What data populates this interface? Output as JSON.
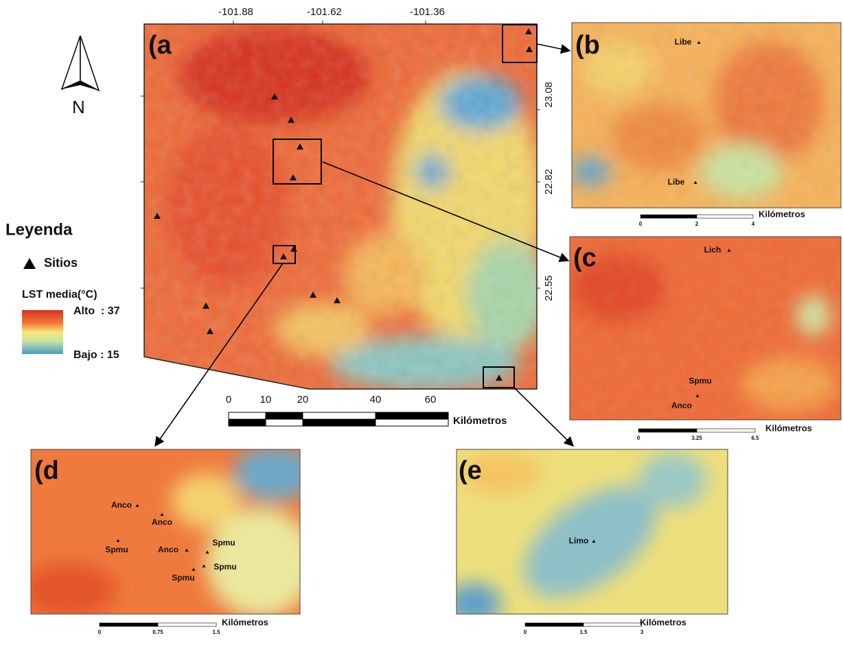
{
  "north": "N",
  "legend": {
    "title": "Leyenda",
    "sites": "Sitios",
    "lst_title": "LST media(°C)",
    "high": "Alto  : 37",
    "low": "Bajo : 15"
  },
  "panel_a": {
    "label": "(a",
    "lon_labels": [
      "-101.88",
      "-101.62",
      "-101.36"
    ],
    "lat_labels": [
      "23.08",
      "22.82",
      "22.55"
    ],
    "scale_labels": [
      "0",
      "10",
      "20",
      "40",
      "60"
    ],
    "scale_unit": "Kilómetros"
  },
  "insets": [
    {
      "label": "(b",
      "sites": [
        "Libe",
        "Libe"
      ],
      "scale_labels": [
        "0",
        "2",
        "4"
      ],
      "scale_unit": "Kilómetros"
    },
    {
      "label": "(c",
      "sites": [
        "Lich",
        "Spmu",
        "Anco"
      ],
      "scale_labels": [
        "0",
        "3.25",
        "6.5"
      ],
      "scale_unit": "Kilómetros"
    },
    {
      "label": "(d",
      "sites": [
        "Anco",
        "Anco",
        "Spmu",
        "Anco",
        "Spmu",
        "Spmu",
        "Spmu"
      ],
      "scale_labels": [
        "0",
        "0.75",
        "1.5"
      ],
      "scale_unit": "Kilómetros"
    },
    {
      "label": "(e",
      "sites": [
        "Limo"
      ],
      "scale_labels": [
        "0",
        "1.5",
        "3"
      ],
      "scale_unit": "Kilómetros"
    }
  ]
}
